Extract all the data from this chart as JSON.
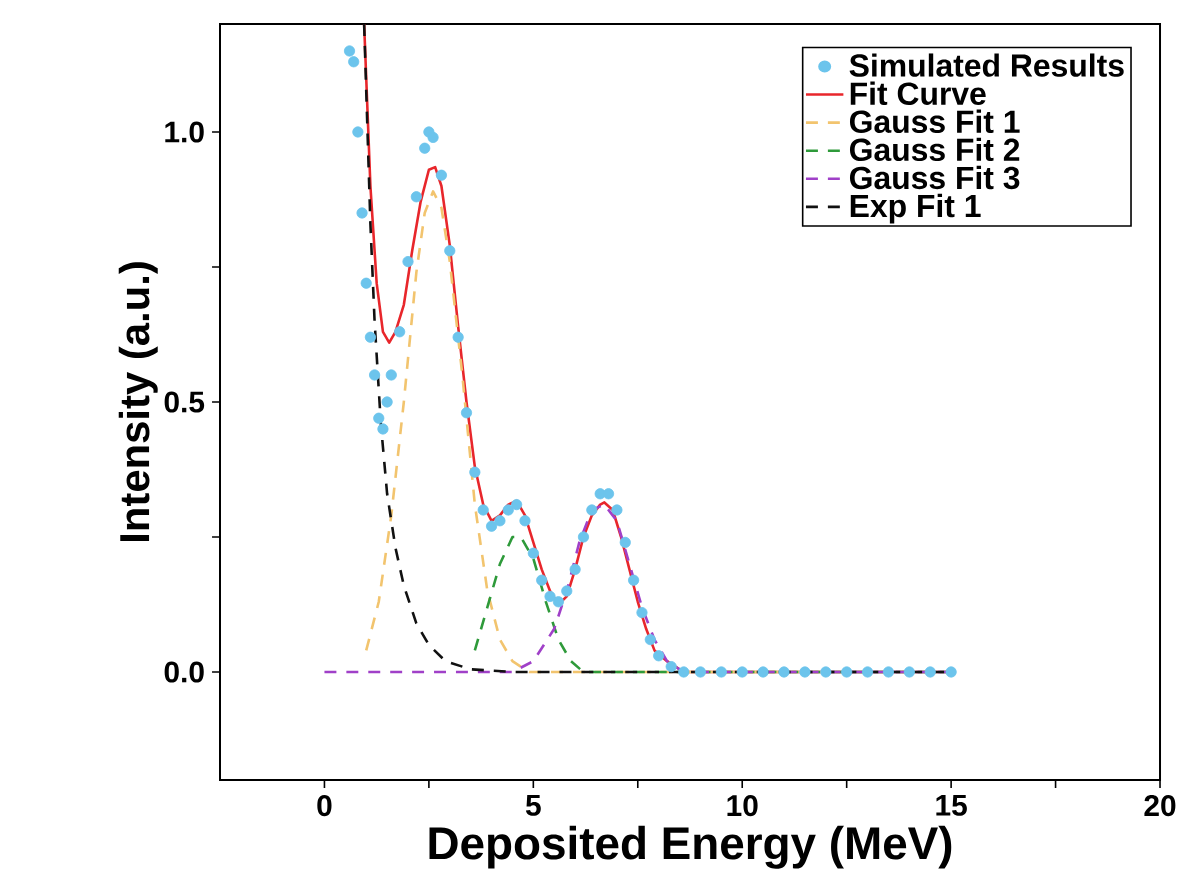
{
  "chart_data": {
    "type": "line",
    "xlabel": "Deposited Energy (MeV)",
    "ylabel": "Intensity (a.u.)",
    "xlim": [
      -2.5,
      20
    ],
    "ylim": [
      -0.2,
      1.2
    ],
    "xticks": [
      0,
      {
        "value": 2.5,
        "label": null
      },
      5,
      {
        "value": 7.5,
        "label": null
      },
      10,
      {
        "value": 12.5,
        "label": null
      },
      15,
      {
        "value": 17.5,
        "label": null
      },
      20
    ],
    "yticks": [
      {
        "value": 0,
        "label": "0.0"
      },
      {
        "value": 0.25,
        "label": null
      },
      {
        "value": 0.5,
        "label": "0.5"
      },
      {
        "value": 0.75,
        "label": null
      },
      {
        "value": 1.0,
        "label": "1.0"
      }
    ],
    "grid": false,
    "legend": "top right",
    "series": [
      {
        "name": "Simulated Results",
        "type": "scatter",
        "marker": "circle",
        "color": "#6cc4ec",
        "x": [
          0.6,
          0.7,
          0.8,
          0.9,
          1.0,
          1.1,
          1.2,
          1.3,
          1.4,
          1.5,
          1.6,
          1.8,
          2.0,
          2.2,
          2.4,
          2.5,
          2.6,
          2.8,
          3.0,
          3.2,
          3.4,
          3.6,
          3.8,
          4.0,
          4.2,
          4.4,
          4.6,
          4.8,
          5.0,
          5.2,
          5.4,
          5.6,
          5.8,
          6.0,
          6.2,
          6.4,
          6.6,
          6.8,
          7.0,
          7.2,
          7.4,
          7.6,
          7.8,
          8.0,
          8.3,
          8.6,
          9.0,
          9.5,
          10.0,
          10.5,
          11.0,
          11.5,
          12.0,
          12.5,
          13.0,
          13.5,
          14.0,
          14.5,
          15.0
        ],
        "values": [
          1.15,
          1.13,
          1.0,
          0.85,
          0.72,
          0.62,
          0.55,
          0.47,
          0.45,
          0.5,
          0.55,
          0.63,
          0.76,
          0.88,
          0.97,
          1.0,
          0.99,
          0.92,
          0.78,
          0.62,
          0.48,
          0.37,
          0.3,
          0.27,
          0.28,
          0.3,
          0.31,
          0.28,
          0.22,
          0.17,
          0.14,
          0.13,
          0.15,
          0.19,
          0.25,
          0.3,
          0.33,
          0.33,
          0.3,
          0.24,
          0.17,
          0.11,
          0.06,
          0.03,
          0.01,
          0,
          0,
          0,
          0,
          0,
          0,
          0,
          0,
          0,
          0,
          0,
          0,
          0,
          0
        ]
      },
      {
        "name": "Fit Curve",
        "marker": "none",
        "line_style": "solid",
        "color": "#e8262b",
        "x": [
          0.95,
          1.1,
          1.25,
          1.4,
          1.55,
          1.7,
          1.9,
          2.1,
          2.3,
          2.5,
          2.65,
          2.8,
          3.0,
          3.2,
          3.4,
          3.6,
          3.8,
          4.0,
          4.2,
          4.4,
          4.6,
          4.8,
          5.0,
          5.2,
          5.4,
          5.6,
          5.8,
          6.0,
          6.2,
          6.4,
          6.6,
          6.7,
          6.9,
          7.1,
          7.3,
          7.5,
          7.7,
          7.9,
          8.2,
          8.6,
          15.0
        ],
        "values": [
          1.2,
          0.9,
          0.72,
          0.63,
          0.61,
          0.63,
          0.68,
          0.78,
          0.87,
          0.93,
          0.935,
          0.9,
          0.79,
          0.64,
          0.5,
          0.38,
          0.31,
          0.28,
          0.29,
          0.31,
          0.317,
          0.29,
          0.24,
          0.19,
          0.15,
          0.125,
          0.14,
          0.19,
          0.25,
          0.29,
          0.31,
          0.314,
          0.3,
          0.25,
          0.19,
          0.13,
          0.08,
          0.04,
          0.02,
          0,
          0
        ]
      },
      {
        "name": "Gauss Fit 1",
        "marker": "none",
        "line_style": "dashed",
        "color": "#f2c46e",
        "x": [
          1.0,
          1.3,
          1.6,
          1.9,
          2.2,
          2.4,
          2.6,
          2.8,
          3.0,
          3.3,
          3.6,
          3.9,
          4.2,
          4.5,
          4.9,
          15.0
        ],
        "values": [
          0.04,
          0.13,
          0.29,
          0.5,
          0.74,
          0.85,
          0.89,
          0.86,
          0.76,
          0.55,
          0.31,
          0.15,
          0.06,
          0.02,
          0,
          0
        ]
      },
      {
        "name": "Gauss Fit 2",
        "marker": "none",
        "line_style": "dashed",
        "color": "#2e9a3a",
        "x": [
          3.6,
          3.9,
          4.2,
          4.5,
          4.7,
          5.0,
          5.3,
          5.6,
          5.9,
          6.2,
          15.0
        ],
        "values": [
          0.04,
          0.12,
          0.2,
          0.25,
          0.25,
          0.21,
          0.13,
          0.06,
          0.02,
          0,
          0
        ]
      },
      {
        "name": "Gauss Fit 3",
        "marker": "none",
        "line_style": "dashed",
        "color": "#a040c8",
        "x": [
          0,
          4.5,
          5.0,
          5.5,
          5.8,
          6.1,
          6.4,
          6.7,
          7.0,
          7.3,
          7.6,
          7.9,
          8.2,
          8.6,
          15.0
        ],
        "values": [
          0,
          0,
          0.02,
          0.08,
          0.15,
          0.24,
          0.3,
          0.31,
          0.28,
          0.2,
          0.12,
          0.06,
          0.02,
          0,
          0
        ]
      },
      {
        "name": "Exp Fit 1",
        "marker": "none",
        "line_style": "dashed",
        "color": "#111111",
        "x": [
          0.95,
          1.1,
          1.2,
          1.35,
          1.5,
          1.7,
          1.9,
          2.2,
          2.5,
          2.9,
          3.5,
          4.5,
          15.0
        ],
        "values": [
          1.2,
          0.83,
          0.65,
          0.46,
          0.33,
          0.23,
          0.16,
          0.09,
          0.05,
          0.02,
          0.005,
          0,
          0
        ]
      }
    ]
  }
}
